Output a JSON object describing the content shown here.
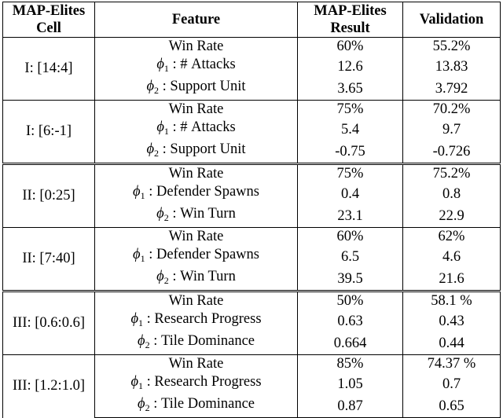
{
  "header": {
    "col1": "MAP-Elites Cell",
    "col2": "Feature",
    "col3": "MAP-Elites Result",
    "col4": "Validation"
  },
  "groups": [
    {
      "cell": "I: [14:4]",
      "rows": [
        {
          "feature": "Win Rate",
          "phi": "",
          "result": "60%",
          "validation": "55.2%"
        },
        {
          "feature": ": # Attacks",
          "phi": "1",
          "result": "12.6",
          "validation": "13.83"
        },
        {
          "feature": ": Support Unit",
          "phi": "2",
          "result": "3.65",
          "validation": "3.792"
        }
      ]
    },
    {
      "cell": "I: [6:-1]",
      "rows": [
        {
          "feature": "Win Rate",
          "phi": "",
          "result": "75%",
          "validation": "70.2%"
        },
        {
          "feature": ": # Attacks",
          "phi": "1",
          "result": "5.4",
          "validation": "9.7"
        },
        {
          "feature": ": Support Unit",
          "phi": "2",
          "result": "-0.75",
          "validation": "-0.726"
        }
      ]
    },
    {
      "cell": "II: [0:25]",
      "rows": [
        {
          "feature": "Win Rate",
          "phi": "",
          "result": "75%",
          "validation": "75.2%"
        },
        {
          "feature": ": Defender Spawns",
          "phi": "1",
          "result": "0.4",
          "validation": "0.8"
        },
        {
          "feature": ": Win Turn",
          "phi": "2",
          "result": "23.1",
          "validation": "22.9"
        }
      ]
    },
    {
      "cell": "II: [7:40]",
      "rows": [
        {
          "feature": "Win Rate",
          "phi": "",
          "result": "60%",
          "validation": "62%"
        },
        {
          "feature": ": Defender Spawns",
          "phi": "1",
          "result": "6.5",
          "validation": "4.6"
        },
        {
          "feature": ": Win Turn",
          "phi": "2",
          "result": "39.5",
          "validation": "21.6"
        }
      ]
    },
    {
      "cell": "III: [0.6:0.6]",
      "rows": [
        {
          "feature": "Win Rate",
          "phi": "",
          "result": "50%",
          "validation": "58.1 %"
        },
        {
          "feature": ": Research Progress",
          "phi": "1",
          "result": "0.63",
          "validation": "0.43"
        },
        {
          "feature": ": Tile Dominance",
          "phi": "2",
          "result": "0.664",
          "validation": "0.44"
        }
      ]
    },
    {
      "cell": "III: [1.2:1.0]",
      "rows": [
        {
          "feature": "Win Rate",
          "phi": "",
          "result": "85%",
          "validation": "74.37 %"
        },
        {
          "feature": ": Research Progress",
          "phi": "1",
          "result": "1.05",
          "validation": "0.7"
        },
        {
          "feature": ": Tile Dominance",
          "phi": "2",
          "result": "0.87",
          "validation": "0.65"
        }
      ]
    }
  ]
}
